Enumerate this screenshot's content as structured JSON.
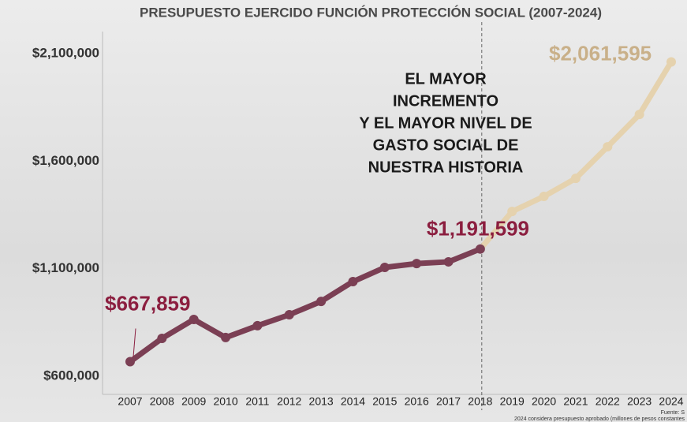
{
  "chart_data": {
    "type": "line",
    "title": "PRESUPUESTO EJERCIDO FUNCIÓN PROTECCIÓN SOCIAL (2007-2024)",
    "annotation": [
      "EL MAYOR",
      "INCREMENTO",
      "Y EL MAYOR NIVEL DE",
      "GASTO SOCIAL DE",
      "NUESTRA HISTORIA"
    ],
    "footnotes": [
      "Fuente: S",
      "2024 considera presupuesto aprobado (millones de pesos constantes"
    ],
    "categories": [
      "2007",
      "2008",
      "2009",
      "2010",
      "2011",
      "2012",
      "2013",
      "2014",
      "2015",
      "2016",
      "2017",
      "2018",
      "2019",
      "2020",
      "2021",
      "2022",
      "2023",
      "2024"
    ],
    "values": [
      667859,
      776000,
      864000,
      780000,
      835000,
      886000,
      948000,
      1040000,
      1106000,
      1124000,
      1132000,
      1191599,
      1366000,
      1436000,
      1520000,
      1667000,
      1817000,
      2061595
    ],
    "value_labels": [
      "$667,859",
      null,
      null,
      null,
      null,
      null,
      null,
      null,
      null,
      null,
      null,
      "$1,191,599",
      null,
      null,
      null,
      null,
      null,
      "$2,061,595"
    ],
    "point_colors": [
      "#7b3f54",
      "#7b3f54",
      "#7b3f54",
      "#7b3f54",
      "#7b3f54",
      "#7b3f54",
      "#7b3f54",
      "#7b3f54",
      "#7b3f54",
      "#7b3f54",
      "#7b3f54",
      "#7b3f54",
      "#e5d2ae",
      "#e5d2ae",
      "#e5d2ae",
      "#e5d2ae",
      "#e5d2ae",
      "#e5d2ae"
    ],
    "ylim": [
      600000,
      2100000
    ],
    "yticks": [
      {
        "value": 600000,
        "label": "$600,000"
      },
      {
        "value": 1100000,
        "label": "$1,100,000"
      },
      {
        "value": 1600000,
        "label": "$1,600,000"
      },
      {
        "value": 2100000,
        "label": "$2,100,000"
      }
    ]
  }
}
